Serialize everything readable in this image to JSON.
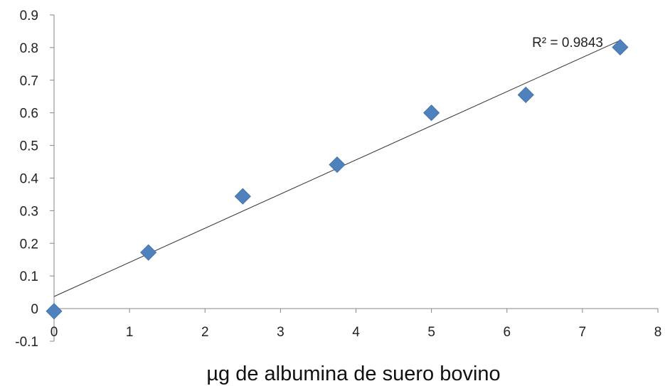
{
  "chart_data": {
    "type": "scatter",
    "title": "",
    "xlabel": "µg de albumina de suero bovino",
    "ylabel": "",
    "xlim": [
      0,
      8
    ],
    "ylim": [
      -0.1,
      0.9
    ],
    "x_ticks": [
      "0",
      "1",
      "2",
      "3",
      "4",
      "5",
      "6",
      "7",
      "8"
    ],
    "y_ticks": [
      "-0.1",
      "0",
      "0.1",
      "0.2",
      "0.3",
      "0.4",
      "0.5",
      "0.6",
      "0.7",
      "0.8",
      "0.9"
    ],
    "grid": false,
    "legend": "none",
    "series": [
      {
        "marker": "diamond",
        "color": "#4f81bd",
        "x": [
          0,
          1.25,
          2.5,
          3.75,
          5,
          6.25,
          7.5
        ],
        "y": [
          -0.008,
          0.172,
          0.344,
          0.441,
          0.6,
          0.655,
          0.801
        ]
      }
    ],
    "trendline": {
      "type": "linear",
      "color": "#333333",
      "x": [
        0,
        7.5
      ],
      "y": [
        0.037,
        0.822
      ],
      "label": "R² = 0.9843"
    }
  }
}
